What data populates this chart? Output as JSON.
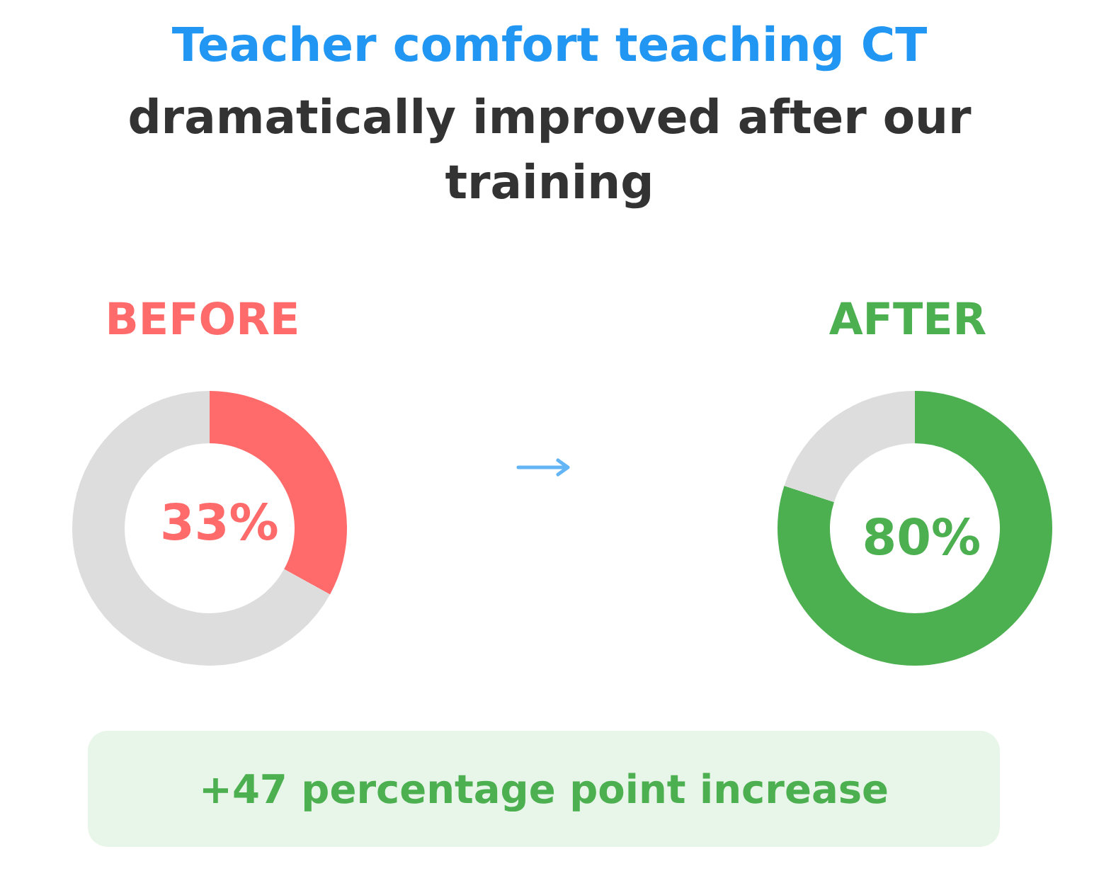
{
  "chart_data": [
    {
      "type": "other",
      "title": "Teacher comfort teaching CT",
      "subtitle": "dramatically improved after our training",
      "annotations": [
        "+47 percentage point increase"
      ]
    },
    {
      "type": "donut",
      "title": "BEFORE",
      "categories": [
        null,
        null
      ],
      "values": [
        33,
        67
      ],
      "colors": [
        "#ff6b6b",
        "#dddddd"
      ],
      "value_labels": [
        "33%",
        null
      ]
    },
    {
      "type": "donut",
      "title": "AFTER",
      "categories": [
        null,
        null
      ],
      "values": [
        80,
        20
      ],
      "colors": [
        "#4caf50",
        "#dddddd"
      ],
      "value_labels": [
        "80%",
        null
      ]
    }
  ]
}
